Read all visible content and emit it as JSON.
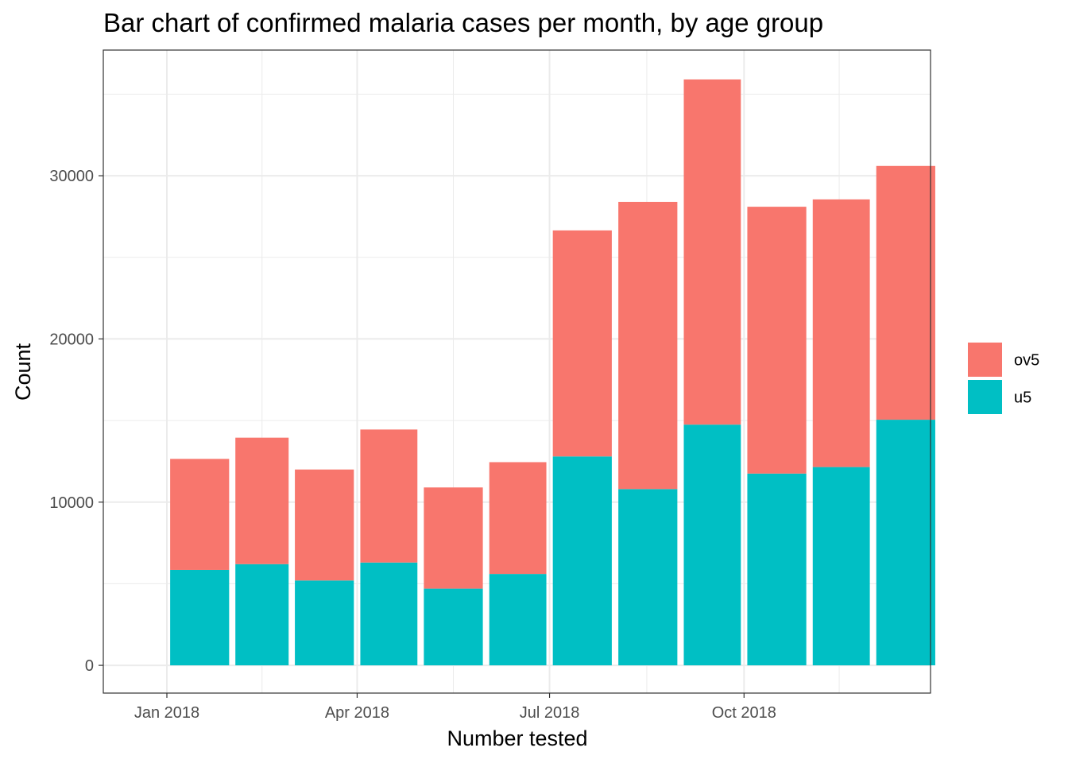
{
  "chart_data": {
    "type": "bar",
    "stacked": true,
    "title": "Bar chart of confirmed malaria cases per month, by age group",
    "xlabel": "Number tested",
    "ylabel": "Count",
    "categories": [
      "2018-01",
      "2018-02",
      "2018-03",
      "2018-04",
      "2018-05",
      "2018-06",
      "2018-07",
      "2018-08",
      "2018-09",
      "2018-10",
      "2018-11",
      "2018-12"
    ],
    "x_tick_labels": [
      {
        "at": "2018-01",
        "label": "Jan 2018"
      },
      {
        "at": "2018-04",
        "label": "Apr 2018"
      },
      {
        "at": "2018-07",
        "label": "Jul 2018"
      },
      {
        "at": "2018-10",
        "label": "Oct 2018"
      }
    ],
    "series": [
      {
        "name": "u5",
        "color": "#00BFC4",
        "values": [
          5850,
          6200,
          5200,
          6300,
          4700,
          5600,
          12800,
          10800,
          14750,
          11750,
          12150,
          15050
        ]
      },
      {
        "name": "ov5",
        "color": "#F8766D",
        "values": [
          6800,
          7750,
          6800,
          8150,
          6200,
          6850,
          13850,
          17600,
          21150,
          16350,
          16400,
          15550
        ]
      }
    ],
    "totals": [
      12650,
      13950,
      12000,
      14450,
      10900,
      12450,
      26650,
      28400,
      35900,
      28100,
      28550,
      30600
    ],
    "y_ticks": [
      0,
      10000,
      20000,
      30000
    ],
    "ylim": [
      -1700,
      37700
    ],
    "grid": true,
    "legend": {
      "position": "right",
      "order": [
        "ov5",
        "u5"
      ]
    }
  }
}
